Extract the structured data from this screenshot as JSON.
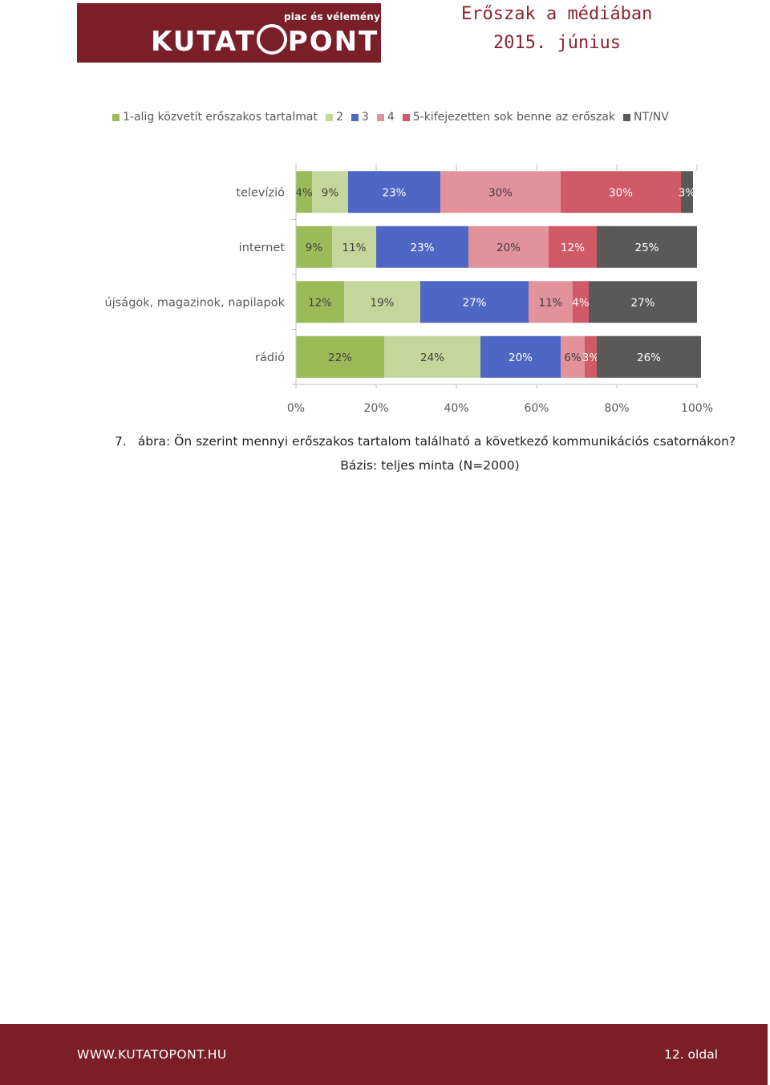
{
  "header": {
    "logo_tagline": "piac és vélemény",
    "logo_brand_left": "KUTAT",
    "logo_brand_right": "PONT",
    "title": "Erőszak a médiában",
    "date": "2015. június"
  },
  "chart_data": {
    "type": "bar",
    "orientation": "horizontal-stacked-100",
    "categories": [
      "televízió",
      "internet",
      "újságok, magazinok, napilapok",
      "rádió"
    ],
    "series": [
      {
        "name": "1-alig közvetít erőszakos tartalmat",
        "color": "#9bbb59",
        "values": [
          4,
          9,
          12,
          22
        ]
      },
      {
        "name": "2",
        "color": "#c4d79b",
        "values": [
          9,
          11,
          19,
          24
        ]
      },
      {
        "name": "3",
        "color": "#4f67c4",
        "values": [
          23,
          23,
          27,
          20
        ]
      },
      {
        "name": "4",
        "color": "#e1929b",
        "values": [
          30,
          20,
          11,
          6
        ]
      },
      {
        "name": "5-kifejezetten sok benne az erőszak",
        "color": "#d05a68",
        "values": [
          30,
          12,
          4,
          3
        ]
      },
      {
        "name": "NT/NV",
        "color": "#595959",
        "values": [
          3,
          25,
          27,
          26
        ]
      }
    ],
    "xlim": [
      0,
      100
    ],
    "xticks": [
      "0%",
      "20%",
      "40%",
      "60%",
      "80%",
      "100%"
    ],
    "value_suffix": "%",
    "legend": "top",
    "grid": false
  },
  "caption": {
    "number": "7.",
    "text": "ábra: Ön szerint mennyi erőszakos tartalom található a következő kommunikációs csatornákon?",
    "base": "Bázis: teljes minta (N=2000)"
  },
  "footer": {
    "url": "WWW.KUTATOPONT.HU",
    "page": "12. oldal"
  }
}
